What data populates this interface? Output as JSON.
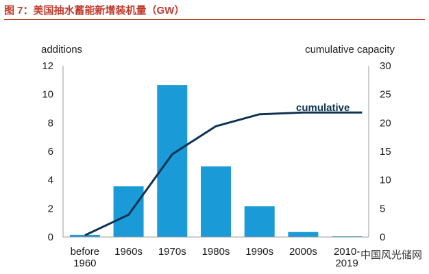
{
  "header": {
    "title": "图 7：美国抽水蓄能新增装机量（GW）"
  },
  "watermark": "中国风光储网",
  "chart_data": {
    "type": "bar",
    "categories": [
      [
        "before",
        "1960"
      ],
      [
        "1960s"
      ],
      [
        "1970s"
      ],
      [
        "1980s"
      ],
      [
        "1990s"
      ],
      [
        "2000s"
      ],
      [
        "2010-",
        "2019"
      ]
    ],
    "series": [
      {
        "name": "",
        "type": "bar",
        "axis": "left",
        "values": [
          0.15,
          3.55,
          10.65,
          4.95,
          2.15,
          0.35,
          0.05
        ]
      },
      {
        "name": "cumulative",
        "type": "line",
        "axis": "right",
        "values": [
          0.3,
          3.9,
          14.5,
          19.4,
          21.5,
          21.8,
          21.8
        ]
      }
    ],
    "ylabel_left": "additions",
    "ylabel_right": "cumulative capacity",
    "ylim_left": [
      0,
      12
    ],
    "ylim_right": [
      0,
      30
    ],
    "yticks_left": [
      "0",
      "2",
      "4",
      "6",
      "8",
      "10",
      "12"
    ],
    "yticks_right": [
      "0",
      "5",
      "10",
      "15",
      "20",
      "25",
      "30"
    ],
    "annotation": "cumulative",
    "colors": {
      "bar": "#1a9ad6",
      "line": "#0e3352"
    },
    "grid": false,
    "legend": "none"
  }
}
